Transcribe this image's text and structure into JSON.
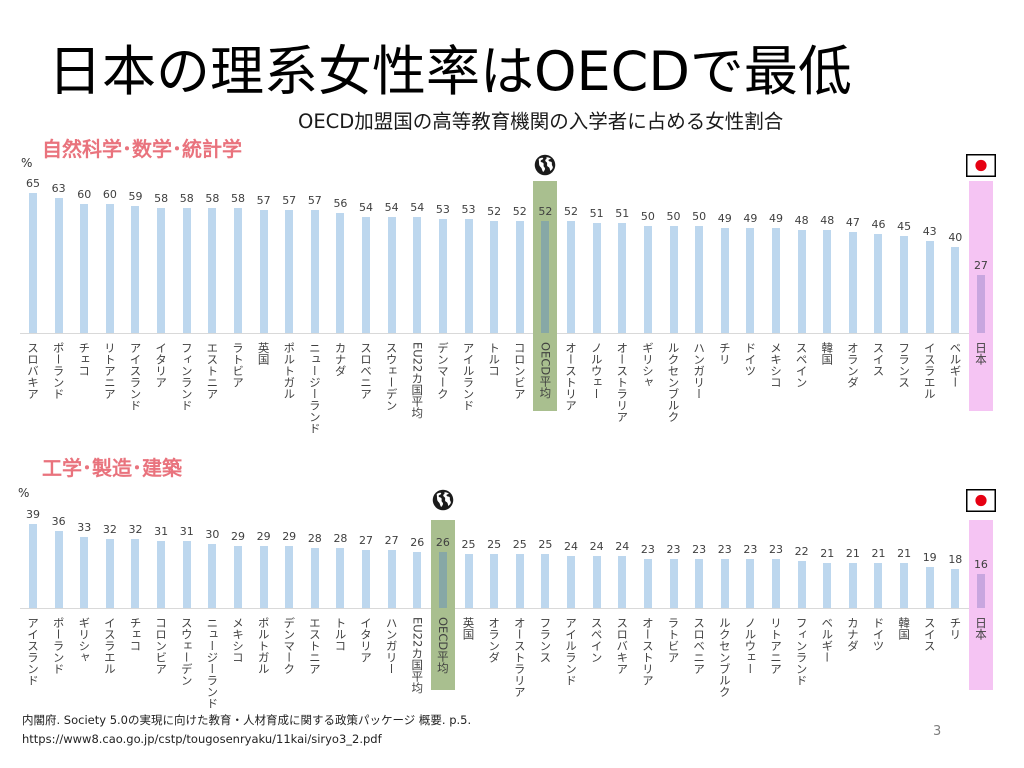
{
  "slide": {
    "title": "日本の理系女性率はOECDで最低",
    "subtitle": "OECD加盟国の高等教育機関の入学者に占める女性割合",
    "source": "内閣府. Society 5.0の実現に向けた教育・人材育成に関する政策パッケージ 概要. p.5.",
    "source_url": "https://www8.cao.go.jp/cstp/tougosenryaku/11kai/siryo3_2.pdf",
    "page_number": "3"
  },
  "colors": {
    "title": "#000000",
    "section_title": "#e9737d",
    "bar": "#bdd7ee",
    "axis": "#d9d9d9",
    "label_text": "#404040"
  },
  "chart_data": [
    {
      "type": "bar",
      "title": "自然科学･数学･統計学",
      "ylabel": "%",
      "ylim": [
        0,
        70
      ],
      "grid": false,
      "categories": [
        "スロバキア",
        "ポーランド",
        "チェコ",
        "リトアニア",
        "アイスランド",
        "イタリア",
        "フィンランド",
        "エストニア",
        "ラトビア",
        "英国",
        "ポルトガル",
        "ニュージーランド",
        "カナダ",
        "スロベニア",
        "スウェーデン",
        "EU22カ国平均",
        "デンマーク",
        "アイルランド",
        "トルコ",
        "コロンビア",
        "OECD平均",
        "オーストリア",
        "ノルウェー",
        "オーストラリア",
        "ギリシャ",
        "ルクセンブルク",
        "ハンガリー",
        "チリ",
        "ドイツ",
        "メキシコ",
        "スペイン",
        "韓国",
        "オランダ",
        "スイス",
        "フランス",
        "イスラエル",
        "ベルギー",
        "日本"
      ],
      "values": [
        65,
        63,
        60,
        60,
        59,
        58,
        58,
        58,
        58,
        57,
        57,
        57,
        56,
        54,
        54,
        54,
        53,
        53,
        52,
        52,
        52,
        52,
        51,
        51,
        50,
        50,
        50,
        49,
        49,
        49,
        48,
        48,
        47,
        46,
        45,
        43,
        40,
        27
      ],
      "highlights": [
        {
          "category": "OECD平均",
          "icon": "globe-icon",
          "fill": "#a9bf8f",
          "bar_fill": "#87a8a6"
        },
        {
          "category": "日本",
          "icon": "japan-flag-icon",
          "fill": "#f5c4f3",
          "bar_fill": "#c8a6df"
        }
      ]
    },
    {
      "type": "bar",
      "title": "工学･製造･建築",
      "ylabel": "%",
      "ylim": [
        0,
        40
      ],
      "grid": false,
      "categories": [
        "アイスランド",
        "ポーランド",
        "ギリシャ",
        "イスラエル",
        "チェコ",
        "コロンビア",
        "スウェーデン",
        "ニュージーランド",
        "メキシコ",
        "ポルトガル",
        "デンマーク",
        "エストニア",
        "トルコ",
        "イタリア",
        "ハンガリー",
        "EU22カ国平均",
        "OECD平均",
        "英国",
        "オランダ",
        "オーストラリア",
        "フランス",
        "アイルランド",
        "スペイン",
        "スロバキア",
        "オーストリア",
        "ラトビア",
        "スロベニア",
        "ルクセンブルク",
        "ノルウェー",
        "リトアニア",
        "フィンランド",
        "ベルギー",
        "カナダ",
        "ドイツ",
        "韓国",
        "スイス",
        "チリ",
        "日本"
      ],
      "values": [
        39,
        36,
        33,
        32,
        32,
        31,
        31,
        30,
        29,
        29,
        29,
        28,
        28,
        27,
        27,
        26,
        26,
        25,
        25,
        25,
        25,
        24,
        24,
        24,
        23,
        23,
        23,
        23,
        23,
        23,
        22,
        21,
        21,
        21,
        21,
        19,
        18,
        16
      ],
      "highlights": [
        {
          "category": "OECD平均",
          "icon": "globe-icon",
          "fill": "#a9bf8f",
          "bar_fill": "#87a8a6"
        },
        {
          "category": "日本",
          "icon": "japan-flag-icon",
          "fill": "#f5c4f3",
          "bar_fill": "#c8a6df"
        }
      ]
    }
  ]
}
